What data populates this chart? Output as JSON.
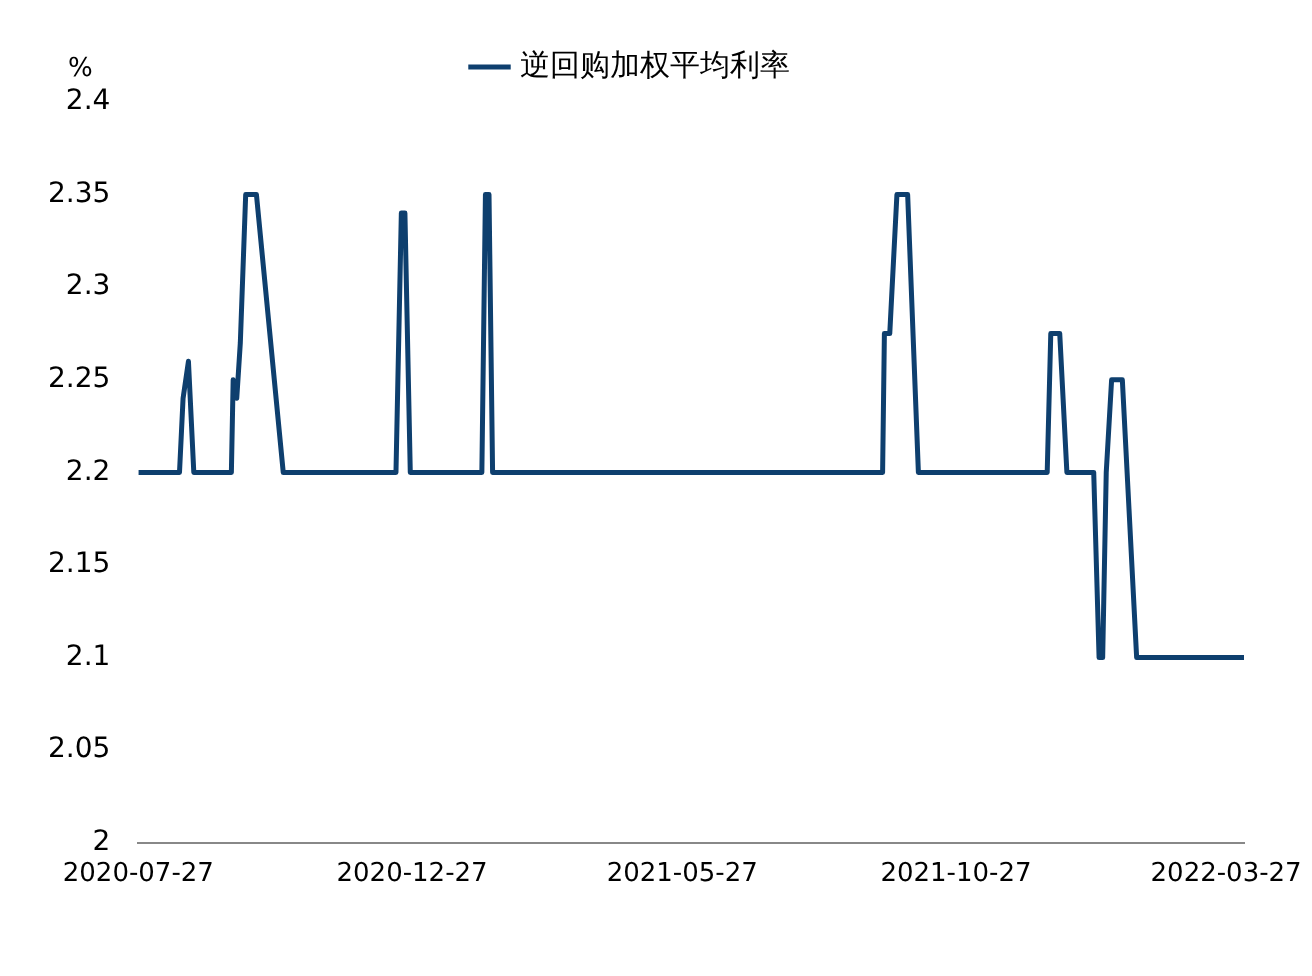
{
  "chart_data": {
    "type": "line",
    "ylabel": "%",
    "legend": "top",
    "grid": false,
    "marker": "none",
    "line_style": "solid",
    "xlim": [
      "2020-07-27",
      "2022-04-06"
    ],
    "ylim": [
      2,
      2.4
    ],
    "xticks": [
      "2020-07-27",
      "2020-12-27",
      "2021-05-27",
      "2021-10-27",
      "2022-03-27"
    ],
    "yticks": [
      2,
      2.05,
      2.1,
      2.15,
      2.2,
      2.25,
      2.3,
      2.35,
      2.4
    ],
    "series": [
      {
        "name": "逆回购加权平均利率",
        "color": "#0e3f6e",
        "x": [
          "2020-07-27",
          "2020-08-19",
          "2020-08-21",
          "2020-08-24",
          "2020-08-27",
          "2020-09-17",
          "2020-09-18",
          "2020-09-20",
          "2020-09-22",
          "2020-09-25",
          "2020-10-01",
          "2020-10-16",
          "2020-12-18",
          "2020-12-21",
          "2020-12-23",
          "2020-12-26",
          "2021-02-04",
          "2021-02-06",
          "2021-02-08",
          "2021-02-10",
          "2021-09-16",
          "2021-09-17",
          "2021-09-20",
          "2021-09-24",
          "2021-09-30",
          "2021-10-06",
          "2021-12-17",
          "2021-12-19",
          "2021-12-24",
          "2021-12-28",
          "2022-01-12",
          "2022-01-15",
          "2022-01-17",
          "2022-01-19",
          "2022-01-22",
          "2022-01-28",
          "2022-02-05",
          "2022-04-06"
        ],
        "values": [
          2.2,
          2.2,
          2.24,
          2.26,
          2.2,
          2.2,
          2.25,
          2.24,
          2.27,
          2.35,
          2.35,
          2.2,
          2.2,
          2.34,
          2.34,
          2.2,
          2.2,
          2.35,
          2.35,
          2.2,
          2.2,
          2.275,
          2.275,
          2.35,
          2.35,
          2.2,
          2.2,
          2.275,
          2.275,
          2.2,
          2.2,
          2.1,
          2.1,
          2.2,
          2.25,
          2.25,
          2.1,
          2.1
        ]
      }
    ]
  }
}
